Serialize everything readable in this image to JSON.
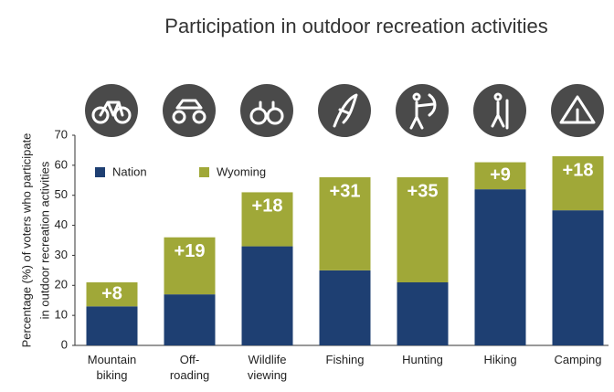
{
  "chart_data": {
    "type": "stacked_bar",
    "title": "Participation in outdoor recreation activities",
    "ylabel": [
      "Percentage (%) of voters who  participate",
      "in outdoor recreation activities"
    ],
    "categories": [
      [
        "Mountain",
        "biking"
      ],
      [
        "Off-",
        "roading"
      ],
      [
        "Wildlife",
        "viewing"
      ],
      [
        "Fishing"
      ],
      [
        "Hunting"
      ],
      [
        "Hiking"
      ],
      [
        "Camping"
      ]
    ],
    "series": [
      {
        "name": "Nation",
        "color": "#1e3f72",
        "values": [
          13,
          17,
          33,
          25,
          21,
          52,
          45
        ]
      },
      {
        "name": "Wyoming",
        "color": "#a0a838",
        "values": [
          8,
          19,
          18,
          31,
          35,
          9,
          18
        ],
        "value_labels": [
          "+8",
          "+19",
          "+18",
          "+31",
          "+35",
          "+9",
          "+18"
        ]
      }
    ],
    "ylim": [
      0,
      70
    ],
    "yticks": [
      0,
      10,
      20,
      30,
      40,
      50,
      60,
      70
    ],
    "grid": false,
    "legend": "top-left"
  }
}
